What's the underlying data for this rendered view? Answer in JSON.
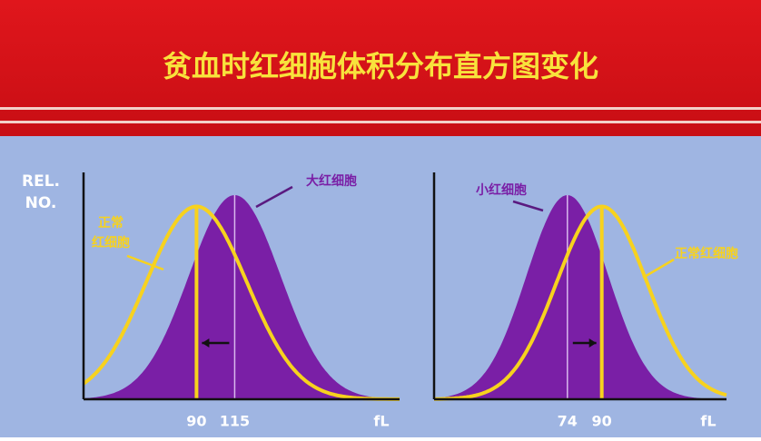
{
  "title": "贫血时红细胞体积分布直方图变化",
  "chart_data": [
    {
      "type": "distribution",
      "ylabel": [
        "REL.",
        "NO."
      ],
      "xlabel": "fL",
      "xlim": [
        16,
        223
      ],
      "ylim": [
        0,
        1
      ],
      "xticks": [
        90,
        115
      ],
      "series": [
        {
          "name": "大红细胞",
          "color": "#7a1fa6",
          "fill": true,
          "mean": 115,
          "sd": 30,
          "peak": 0.9
        },
        {
          "name": [
            "正常",
            "红细胞"
          ],
          "color": "#f7d21e",
          "fill": false,
          "mean": 90,
          "sd": 33,
          "peak": 0.85
        }
      ]
    },
    {
      "type": "distribution",
      "xlabel": "fL",
      "xlim": [
        12,
        148
      ],
      "ylim": [
        0,
        1
      ],
      "xticks": [
        74,
        90
      ],
      "series": [
        {
          "name": "小红细胞",
          "color": "#7a1fa6",
          "fill": true,
          "mean": 74,
          "sd": 19,
          "peak": 0.9
        },
        {
          "name": "正常红细胞",
          "color": "#f7d21e",
          "fill": false,
          "mean": 90,
          "sd": 21,
          "peak": 0.85
        }
      ]
    }
  ]
}
